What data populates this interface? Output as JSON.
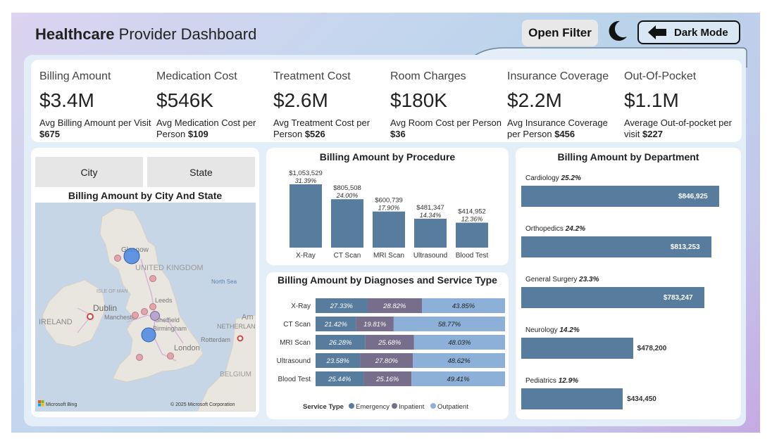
{
  "header": {
    "title_bold": "Healthcare",
    "title_rest": "Provider Dashboard",
    "open_filter_label": "Open Filter",
    "dark_mode_label": "Dark Mode"
  },
  "kpis": [
    {
      "label": "Billing Amount",
      "value": "$3.4M",
      "sub_text": "Avg Billing Amount per Visit",
      "sub_value": "$675"
    },
    {
      "label": "Medication Cost",
      "value": "$546K",
      "sub_text": "Avg Medication Cost per Person",
      "sub_value": "$109"
    },
    {
      "label": "Treatment Cost",
      "value": "$2.6M",
      "sub_text": "Avg Treatment Cost per Person",
      "sub_value": "$526"
    },
    {
      "label": "Room Charges",
      "value": "$180K",
      "sub_text": "Avg Room Cost per Person",
      "sub_value": "$36"
    },
    {
      "label": "Insurance Coverage",
      "value": "$2.2M",
      "sub_text": "Avg Insurance Coverage per Person",
      "sub_value": "$456"
    },
    {
      "label": "Out-Of-Pocket",
      "value": "$1.1M",
      "sub_text": "Average Out-of-pocket per visit",
      "sub_value": "$227"
    }
  ],
  "map_card": {
    "slicer_city": "City",
    "slicer_state": "State",
    "title": "Billing Amount by City And State",
    "labels": {
      "glasgow": "Glasgow",
      "united_kingdom": "UNITED KINGDOM",
      "north_sea": "North Sea",
      "isle_of_man": "ISLE OF MAN",
      "dublin": "Dublin",
      "ireland": "IRELAND",
      "leeds": "Leeds",
      "manchester": "Manchester",
      "sheffield": "Sheffield",
      "birmingham": "Birmingham",
      "netherlands": "NETHERLAND",
      "rotterdam": "Rotterdam",
      "london": "London",
      "belgium": "BELGIUM",
      "am": "Am"
    },
    "attribution_left": "Microsoft Bing",
    "attribution_right": "© 2025 Microsoft Corporation"
  },
  "colors": {
    "bar": "#587c9e",
    "emergency": "#587c9e",
    "inpatient": "#766e8a",
    "outpatient": "#8cb0d8",
    "bubble_large": "#4a86e0",
    "bubble_small": "#e3a5ad"
  },
  "chart_data": [
    {
      "id": "procedure",
      "type": "bar",
      "title": "Billing Amount by Procedure",
      "categories": [
        "X-Ray",
        "CT Scan",
        "MRI Scan",
        "Ultrasound",
        "Blood Test"
      ],
      "values": [
        1053529,
        805508,
        600739,
        481347,
        414952
      ],
      "value_labels": [
        "$1,053,529",
        "$805,508",
        "$600,739",
        "$481,347",
        "$414,952"
      ],
      "pct_labels": [
        "31.39%",
        "24.00%",
        "17.90%",
        "14.34%",
        "12.36%"
      ]
    },
    {
      "id": "diagnoses",
      "type": "bar",
      "orientation": "horizontal-stacked-100",
      "title": "Billing Amount by Diagnoses and Service Type",
      "categories": [
        "X-Ray",
        "CT Scan",
        "MRI Scan",
        "Ultrasound",
        "Blood Test"
      ],
      "legend_title": "Service Type",
      "series": [
        {
          "name": "Emergency",
          "values": [
            27.33,
            21.42,
            26.28,
            23.58,
            25.44
          ],
          "labels": [
            "27.33%",
            "21.42%",
            "26.28%",
            "23.58%",
            "25.44%"
          ]
        },
        {
          "name": "Inpatient",
          "values": [
            28.82,
            19.81,
            25.68,
            27.8,
            25.16
          ],
          "labels": [
            "28.82%",
            "19.81%",
            "25.68%",
            "27.80%",
            "25.16%"
          ]
        },
        {
          "name": "Outpatient",
          "values": [
            43.85,
            58.77,
            48.03,
            48.62,
            49.41
          ],
          "labels": [
            "43.85%",
            "58.77%",
            "48.03%",
            "48.62%",
            "49.41%"
          ]
        }
      ]
    },
    {
      "id": "department",
      "type": "bar",
      "orientation": "horizontal",
      "title": "Billing Amount by Department",
      "categories": [
        "Cardiology",
        "Orthopedics",
        "General Surgery",
        "Neurology",
        "Pediatrics"
      ],
      "pct_labels": [
        "25.2%",
        "24.2%",
        "23.3%",
        "14.2%",
        "12.9%"
      ],
      "values": [
        846925,
        813253,
        783247,
        478200,
        434450
      ],
      "value_labels": [
        "$846,925",
        "$813,253",
        "$783,247",
        "$478,200",
        "$434,450"
      ]
    }
  ]
}
